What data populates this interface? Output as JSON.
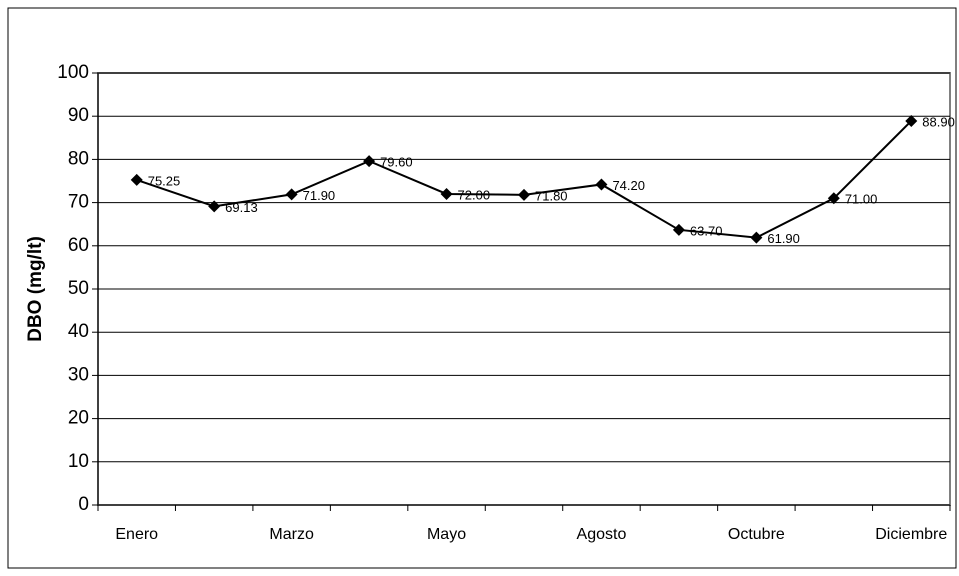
{
  "chart_data": {
    "type": "line",
    "y_label": "DBO (mg/lt)",
    "categories": [
      "Enero",
      null,
      "Marzo",
      null,
      "Mayo",
      null,
      "Agosto",
      null,
      "Octubre",
      null,
      "Diciembre"
    ],
    "values": [
      75.25,
      69.13,
      71.9,
      79.6,
      72,
      71.8,
      74.2,
      63.7,
      61.9,
      71,
      88.9
    ],
    "value_labels": [
      "75.25",
      "69.13",
      "71.90",
      "79.60",
      "72.00",
      "71.80",
      "74.20",
      "63.70",
      "61.90",
      "71.00",
      "88.90"
    ],
    "color": "#000000",
    "ylim": [
      0,
      100
    ],
    "yticks": [
      0,
      10,
      20,
      30,
      40,
      50,
      60,
      70,
      80,
      90,
      100
    ],
    "grid": true
  }
}
